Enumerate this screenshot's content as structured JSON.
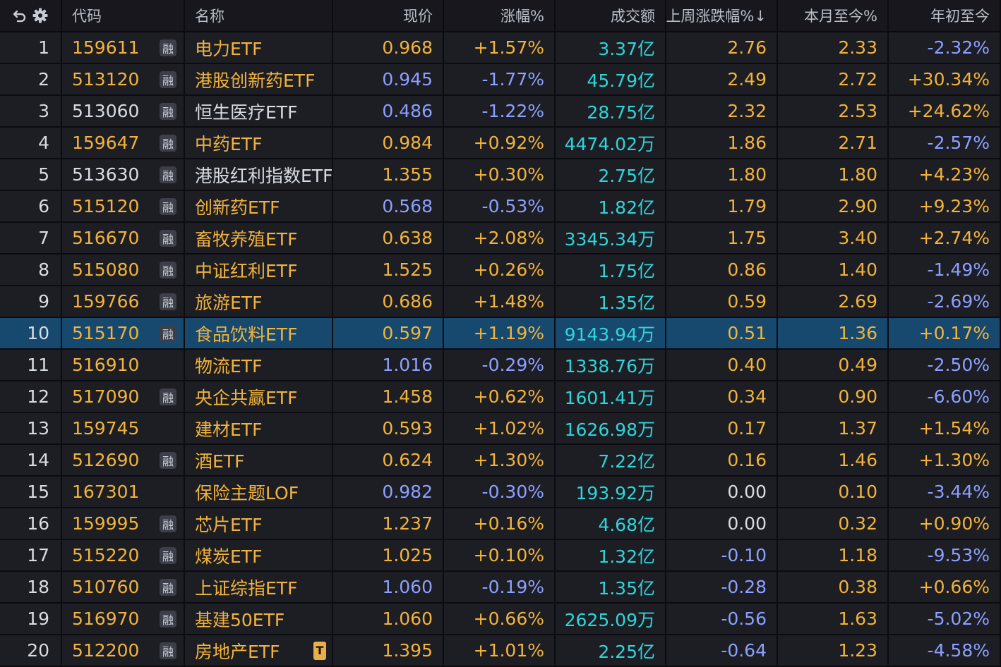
{
  "colors": {
    "up": "#f1b33d",
    "down": "#8ca0ff",
    "neutral": "#d8dce3",
    "volume": "#2fd5d8",
    "selected_row": "#17496f"
  },
  "header": {
    "icons": [
      "refresh-icon",
      "gear-icon"
    ],
    "code": "代码",
    "name": "名称",
    "price": "现价",
    "change": "涨幅%",
    "volume": "成交额",
    "last_week": "上周涨跌幅%↓",
    "mtd": "本月至今%",
    "ytd": "年初至今"
  },
  "rong_label": "融",
  "t_label": "T",
  "selected_index": 10,
  "rows": [
    {
      "idx": "1",
      "code": "159611",
      "code_color": "up",
      "rong": true,
      "name": "电力ETF",
      "name_color": "up",
      "price": "0.968",
      "price_color": "up",
      "change": "+1.57%",
      "change_color": "up",
      "volume": "3.37亿",
      "last_week": "2.76",
      "lw_color": "up",
      "mtd": "2.33",
      "mtd_color": "up",
      "ytd": "-2.32%",
      "ytd_color": "down"
    },
    {
      "idx": "2",
      "code": "513120",
      "code_color": "up",
      "rong": true,
      "name": "港股创新药ETF",
      "name_color": "up",
      "price": "0.945",
      "price_color": "down",
      "change": "-1.77%",
      "change_color": "down",
      "volume": "45.79亿",
      "last_week": "2.49",
      "lw_color": "up",
      "mtd": "2.72",
      "mtd_color": "up",
      "ytd": "+30.34%",
      "ytd_color": "up"
    },
    {
      "idx": "3",
      "code": "513060",
      "code_color": "neutral",
      "rong": true,
      "name": "恒生医疗ETF",
      "name_color": "neutral",
      "price": "0.486",
      "price_color": "down",
      "change": "-1.22%",
      "change_color": "down",
      "volume": "28.75亿",
      "last_week": "2.32",
      "lw_color": "up",
      "mtd": "2.53",
      "mtd_color": "up",
      "ytd": "+24.62%",
      "ytd_color": "up"
    },
    {
      "idx": "4",
      "code": "159647",
      "code_color": "up",
      "rong": true,
      "name": "中药ETF",
      "name_color": "up",
      "price": "0.984",
      "price_color": "up",
      "change": "+0.92%",
      "change_color": "up",
      "volume": "4474.02万",
      "last_week": "1.86",
      "lw_color": "up",
      "mtd": "2.71",
      "mtd_color": "up",
      "ytd": "-2.57%",
      "ytd_color": "down"
    },
    {
      "idx": "5",
      "code": "513630",
      "code_color": "neutral",
      "rong": true,
      "name": "港股红利指数ETF",
      "name_color": "neutral",
      "price": "1.355",
      "price_color": "up",
      "change": "+0.30%",
      "change_color": "up",
      "volume": "2.75亿",
      "last_week": "1.80",
      "lw_color": "up",
      "mtd": "1.80",
      "mtd_color": "up",
      "ytd": "+4.23%",
      "ytd_color": "up"
    },
    {
      "idx": "6",
      "code": "515120",
      "code_color": "up",
      "rong": true,
      "name": "创新药ETF",
      "name_color": "up",
      "price": "0.568",
      "price_color": "down",
      "change": "-0.53%",
      "change_color": "down",
      "volume": "1.82亿",
      "last_week": "1.79",
      "lw_color": "up",
      "mtd": "2.90",
      "mtd_color": "up",
      "ytd": "+9.23%",
      "ytd_color": "up"
    },
    {
      "idx": "7",
      "code": "516670",
      "code_color": "up",
      "rong": true,
      "name": "畜牧养殖ETF",
      "name_color": "up",
      "price": "0.638",
      "price_color": "up",
      "change": "+2.08%",
      "change_color": "up",
      "volume": "3345.34万",
      "last_week": "1.75",
      "lw_color": "up",
      "mtd": "3.40",
      "mtd_color": "up",
      "ytd": "+2.74%",
      "ytd_color": "up"
    },
    {
      "idx": "8",
      "code": "515080",
      "code_color": "up",
      "rong": true,
      "name": "中证红利ETF",
      "name_color": "up",
      "price": "1.525",
      "price_color": "up",
      "change": "+0.26%",
      "change_color": "up",
      "volume": "1.75亿",
      "last_week": "0.86",
      "lw_color": "up",
      "mtd": "1.40",
      "mtd_color": "up",
      "ytd": "-1.49%",
      "ytd_color": "down"
    },
    {
      "idx": "9",
      "code": "159766",
      "code_color": "up",
      "rong": true,
      "name": "旅游ETF",
      "name_color": "up",
      "price": "0.686",
      "price_color": "up",
      "change": "+1.48%",
      "change_color": "up",
      "volume": "1.35亿",
      "last_week": "0.59",
      "lw_color": "up",
      "mtd": "2.69",
      "mtd_color": "up",
      "ytd": "-2.69%",
      "ytd_color": "down"
    },
    {
      "idx": "10",
      "code": "515170",
      "code_color": "up",
      "rong": true,
      "name": "食品饮料ETF",
      "name_color": "up",
      "price": "0.597",
      "price_color": "up",
      "change": "+1.19%",
      "change_color": "up",
      "volume": "9143.94万",
      "last_week": "0.51",
      "lw_color": "up",
      "mtd": "1.36",
      "mtd_color": "up",
      "ytd": "+0.17%",
      "ytd_color": "up"
    },
    {
      "idx": "11",
      "code": "516910",
      "code_color": "up",
      "rong": false,
      "name": "物流ETF",
      "name_color": "up",
      "price": "1.016",
      "price_color": "down",
      "change": "-0.29%",
      "change_color": "down",
      "volume": "1338.76万",
      "last_week": "0.40",
      "lw_color": "up",
      "mtd": "0.49",
      "mtd_color": "up",
      "ytd": "-2.50%",
      "ytd_color": "down"
    },
    {
      "idx": "12",
      "code": "517090",
      "code_color": "up",
      "rong": true,
      "name": "央企共赢ETF",
      "name_color": "up",
      "price": "1.458",
      "price_color": "up",
      "change": "+0.62%",
      "change_color": "up",
      "volume": "1601.41万",
      "last_week": "0.34",
      "lw_color": "up",
      "mtd": "0.90",
      "mtd_color": "up",
      "ytd": "-6.60%",
      "ytd_color": "down"
    },
    {
      "idx": "13",
      "code": "159745",
      "code_color": "up",
      "rong": false,
      "name": "建材ETF",
      "name_color": "up",
      "price": "0.593",
      "price_color": "up",
      "change": "+1.02%",
      "change_color": "up",
      "volume": "1626.98万",
      "last_week": "0.17",
      "lw_color": "up",
      "mtd": "1.37",
      "mtd_color": "up",
      "ytd": "+1.54%",
      "ytd_color": "up"
    },
    {
      "idx": "14",
      "code": "512690",
      "code_color": "up",
      "rong": true,
      "name": "酒ETF",
      "name_color": "up",
      "price": "0.624",
      "price_color": "up",
      "change": "+1.30%",
      "change_color": "up",
      "volume": "7.22亿",
      "last_week": "0.16",
      "lw_color": "up",
      "mtd": "1.46",
      "mtd_color": "up",
      "ytd": "+1.30%",
      "ytd_color": "up"
    },
    {
      "idx": "15",
      "code": "167301",
      "code_color": "up",
      "rong": false,
      "name": "保险主题LOF",
      "name_color": "up",
      "price": "0.982",
      "price_color": "down",
      "change": "-0.30%",
      "change_color": "down",
      "volume": "193.92万",
      "last_week": "0.00",
      "lw_color": "neutral",
      "mtd": "0.10",
      "mtd_color": "up",
      "ytd": "-3.44%",
      "ytd_color": "down"
    },
    {
      "idx": "16",
      "code": "159995",
      "code_color": "up",
      "rong": true,
      "name": "芯片ETF",
      "name_color": "up",
      "price": "1.237",
      "price_color": "up",
      "change": "+0.16%",
      "change_color": "up",
      "volume": "4.68亿",
      "last_week": "0.00",
      "lw_color": "neutral",
      "mtd": "0.32",
      "mtd_color": "up",
      "ytd": "+0.90%",
      "ytd_color": "up"
    },
    {
      "idx": "17",
      "code": "515220",
      "code_color": "up",
      "rong": true,
      "name": "煤炭ETF",
      "name_color": "up",
      "price": "1.025",
      "price_color": "up",
      "change": "+0.10%",
      "change_color": "up",
      "volume": "1.32亿",
      "last_week": "-0.10",
      "lw_color": "down",
      "mtd": "1.18",
      "mtd_color": "up",
      "ytd": "-9.53%",
      "ytd_color": "down"
    },
    {
      "idx": "18",
      "code": "510760",
      "code_color": "up",
      "rong": true,
      "name": "上证综指ETF",
      "name_color": "up",
      "price": "1.060",
      "price_color": "down",
      "change": "-0.19%",
      "change_color": "down",
      "volume": "1.35亿",
      "last_week": "-0.28",
      "lw_color": "down",
      "mtd": "0.38",
      "mtd_color": "up",
      "ytd": "+0.66%",
      "ytd_color": "up"
    },
    {
      "idx": "19",
      "code": "516970",
      "code_color": "up",
      "rong": true,
      "name": "基建50ETF",
      "name_color": "up",
      "price": "1.060",
      "price_color": "up",
      "change": "+0.66%",
      "change_color": "up",
      "volume": "2625.09万",
      "last_week": "-0.56",
      "lw_color": "down",
      "mtd": "1.63",
      "mtd_color": "up",
      "ytd": "-5.02%",
      "ytd_color": "down"
    },
    {
      "idx": "20",
      "code": "512200",
      "code_color": "up",
      "rong": true,
      "name": "房地产ETF",
      "name_color": "up",
      "t_badge": true,
      "price": "1.395",
      "price_color": "up",
      "change": "+1.01%",
      "change_color": "up",
      "volume": "2.25亿",
      "last_week": "-0.64",
      "lw_color": "down",
      "mtd": "1.23",
      "mtd_color": "up",
      "ytd": "-4.58%",
      "ytd_color": "down"
    }
  ]
}
